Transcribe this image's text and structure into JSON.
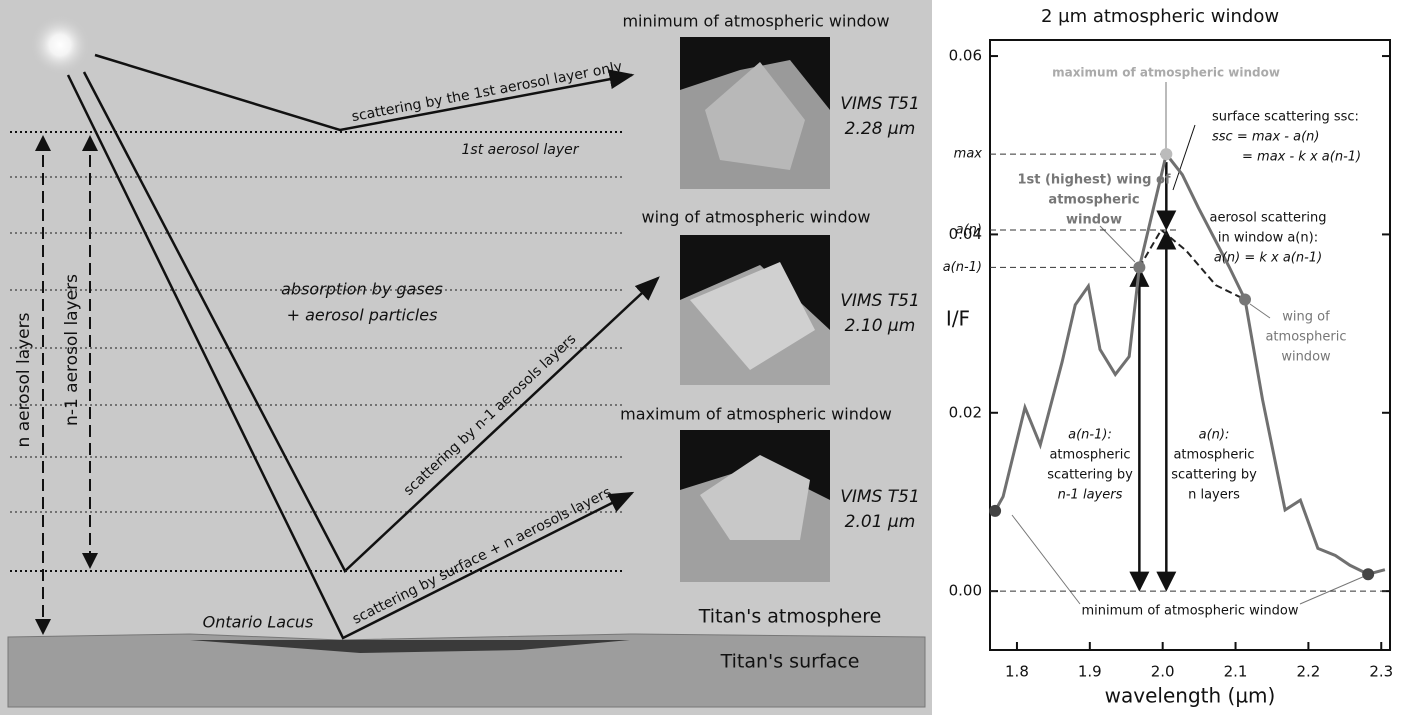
{
  "diagram": {
    "panel_titles": [
      "minimum of atmospheric window",
      "wing of atmospheric window",
      "maximum of atmospheric window"
    ],
    "image_labels": [
      [
        "VIMS T51",
        "2.28 µm"
      ],
      [
        "VIMS T51",
        "2.10 µm"
      ],
      [
        "VIMS T51",
        "2.01 µm"
      ]
    ],
    "layer_label": "1st aerosol layer",
    "absorption": [
      "absorption by gases",
      "+ aerosol particles"
    ],
    "ray_labels": [
      "scattering by the 1st aerosol layer only",
      "scattering by n-1 aerosols layers",
      "scattering by surface + n aerosols layers"
    ],
    "depth_labels": [
      "n aerosol layers",
      "n-1 aerosol layers"
    ],
    "lake": "Ontario Lacus",
    "atmosphere": "Titan's atmosphere",
    "surface": "Titan's surface"
  },
  "chart_data": {
    "type": "line",
    "title": "2 µm atmospheric window",
    "x_label": "wavelength (µm)",
    "y_label": "I/F",
    "xlim": [
      1.763,
      2.312
    ],
    "ylim": [
      -0.0066,
      0.0618
    ],
    "xticks": [
      1.8,
      1.9,
      {
        "value": 2.0,
        "label": "2.0"
      },
      2.1,
      2.2,
      2.3
    ],
    "yticks": [
      {
        "value": 0,
        "label": "0.00"
      },
      0.02,
      0.04,
      0.06
    ],
    "series": [
      {
        "color": "#707070",
        "x": [
          1.77,
          1.781,
          1.811,
          1.832,
          1.862,
          1.88,
          1.898,
          1.914,
          1.935,
          1.954,
          1.968,
          2.005,
          2.027,
          2.049,
          2.091,
          2.113,
          2.137,
          2.168,
          2.189,
          2.213,
          2.237,
          2.257,
          2.282,
          2.305
        ],
        "values": [
          0.009,
          0.0106,
          0.0206,
          0.0164,
          0.0257,
          0.0321,
          0.0342,
          0.0271,
          0.0243,
          0.0263,
          0.0363,
          0.049,
          0.0467,
          0.043,
          0.0364,
          0.0327,
          0.0215,
          0.0091,
          0.0102,
          0.0048,
          0.004,
          0.0029,
          0.0019,
          0.0024
        ]
      },
      {
        "color": "#222222",
        "dashed": true,
        "x": [
          1.968,
          1.998,
          2.032,
          2.073,
          2.113
        ],
        "values": [
          0.0363,
          0.0405,
          0.0382,
          0.0343,
          0.0327
        ]
      }
    ],
    "markers": {
      "x": [
        1.77,
        1.968,
        2.005,
        2.113,
        2.282
      ],
      "values": [
        0.009,
        0.0363,
        0.049,
        0.0327,
        0.0019
      ],
      "colors": [
        "#444444",
        "#777777",
        "#bbbbbb",
        "#777777",
        "#444444"
      ]
    },
    "reference_lines": [
      {
        "label": "max",
        "value": 0.049
      },
      {
        "label": "a(n)",
        "value": 0.0405
      },
      {
        "label": "a(n-1)",
        "value": 0.0363
      }
    ],
    "annotations": [
      [
        "maximum of atmospheric window"
      ],
      [
        "surface scattering ssc:",
        "ssc = max - a(n)",
        "= max - k x a(n-1)"
      ],
      [
        "1st (highest) wing of",
        "atmospheric",
        "window"
      ],
      [
        "aerosol scattering",
        "in window a(n):",
        "a(n) = k x a(n-1)"
      ],
      [
        "wing of",
        "atmospheric",
        "window"
      ],
      [
        "a(n-1):",
        "atmospheric",
        "scattering by",
        "n-1 layers"
      ],
      [
        "a(n):",
        "atmospheric",
        "scattering by",
        "n layers"
      ],
      [
        "minimum of atmospheric window"
      ]
    ]
  }
}
